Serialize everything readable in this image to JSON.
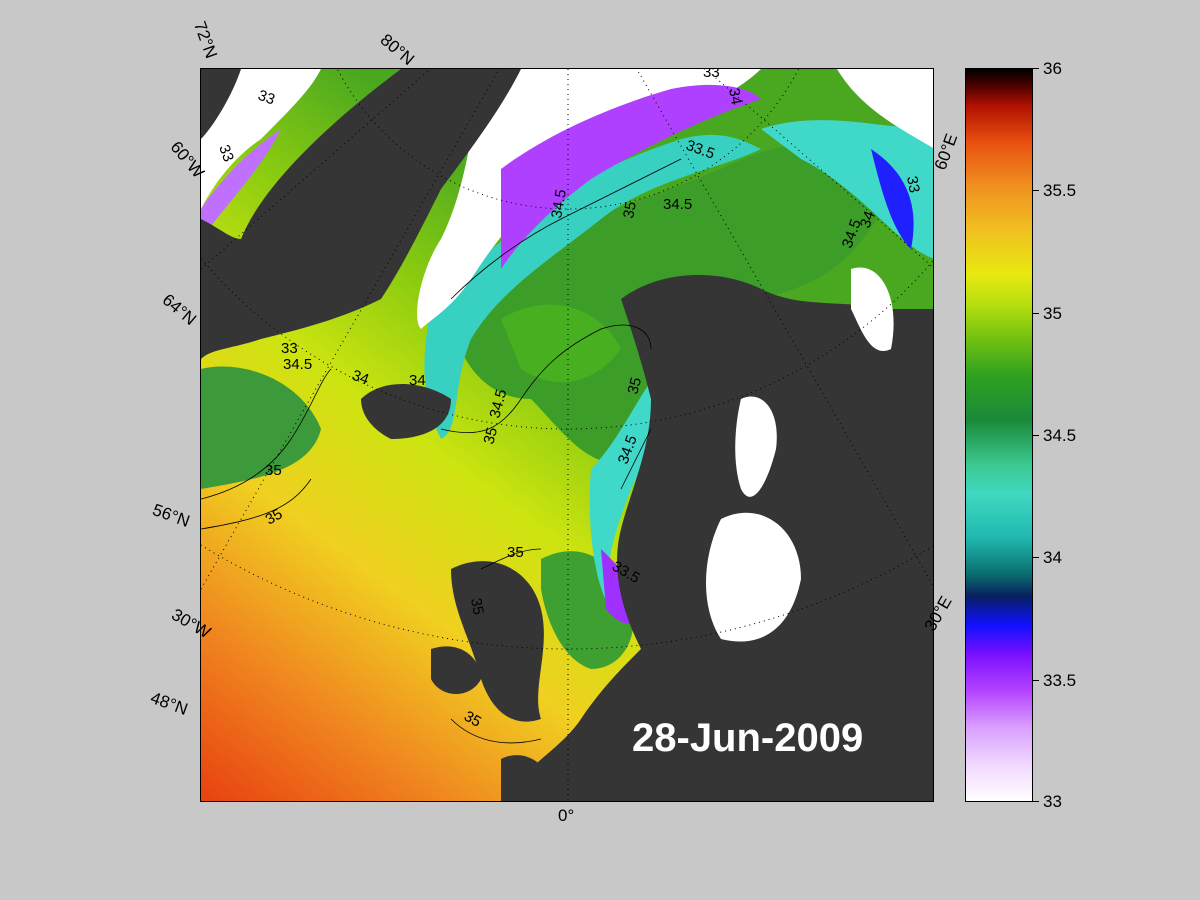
{
  "date_label": "28-Jun-2009",
  "graticule_labels": {
    "lat_72": "72°N",
    "lat_80": "80°N",
    "lat_64": "64°N",
    "lat_56": "56°N",
    "lat_48": "48°N",
    "lon_60w": "60°W",
    "lon_30w": "30°W",
    "lon_0": "0°",
    "lon_30e": "30°E",
    "lon_60e": "60°E"
  },
  "contour_labels": {
    "c1": "33",
    "c2": "33",
    "c3": "33",
    "c4": "34",
    "c5": "33.5",
    "c6": "34.5",
    "c7": "35",
    "c8": "34.5",
    "c9": "34.5",
    "c10": "34",
    "c11": "33",
    "c12": "33",
    "c13": "34.5",
    "c14": "34",
    "c15": "34",
    "c16": "34.5",
    "c17": "35",
    "c18": "35",
    "c19": "35",
    "c20": "35",
    "c21": "35",
    "c22": "34.5",
    "c23": "33.5",
    "c24": "35",
    "c25": "35"
  },
  "colorbar": {
    "labels": [
      "36",
      "35.5",
      "35",
      "34.5",
      "34",
      "33.5",
      "33"
    ],
    "min": 33,
    "max": 36
  },
  "colors": {
    "land": "#353535",
    "ice": "#ffffff",
    "background": "#c8c8c8"
  }
}
